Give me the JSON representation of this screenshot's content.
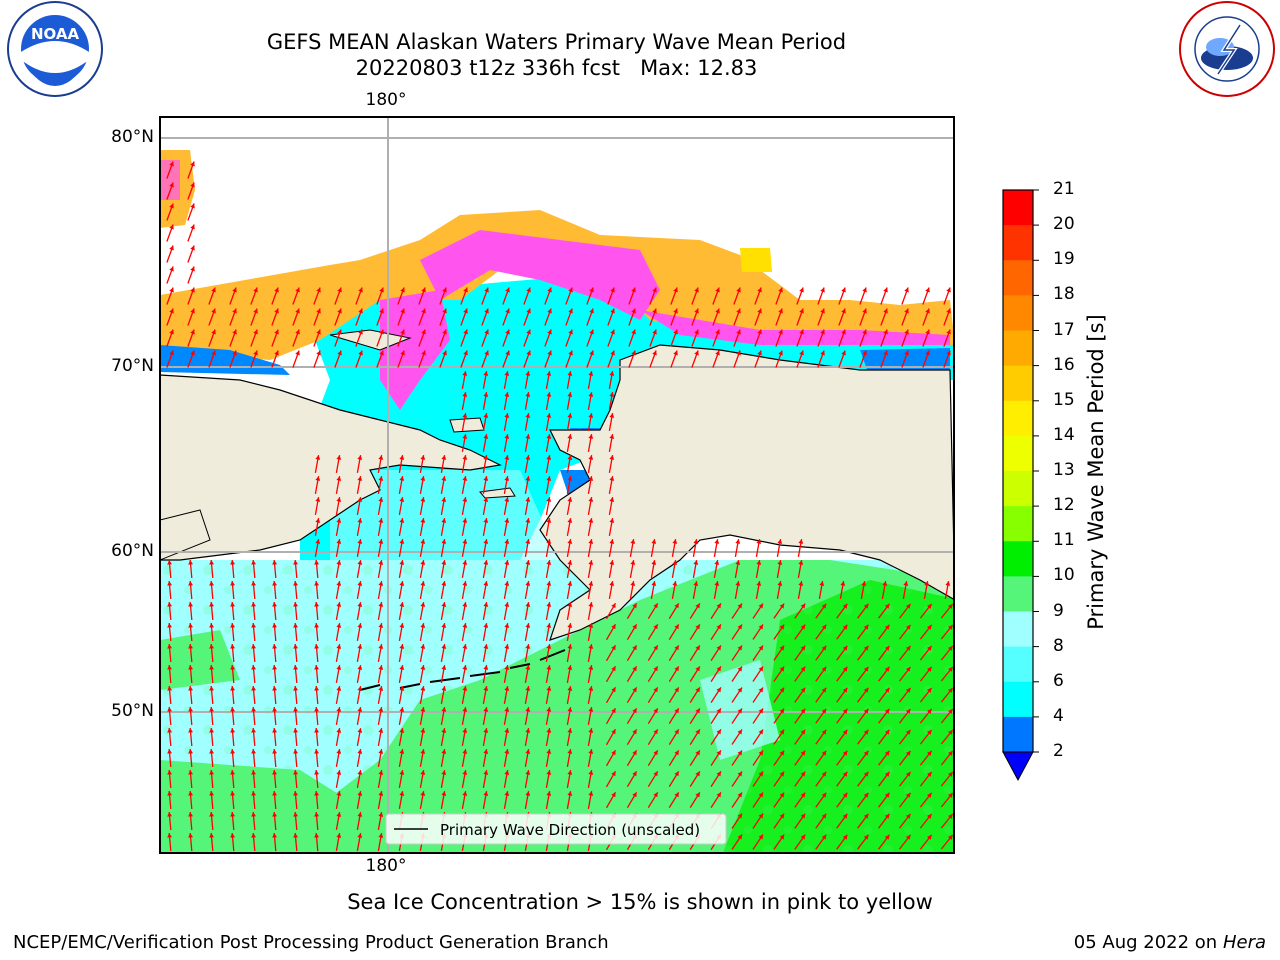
{
  "header": {
    "title_line1": "GEFS MEAN Alaskan Waters Primary Wave Mean Period",
    "title_line2": "20220803 t12z 336h fcst   Max: 12.83"
  },
  "logos": {
    "left": "NOAA",
    "right": "NATIONAL WEATHER SERVICE"
  },
  "map": {
    "lat_labels": [
      "80°N",
      "70°N",
      "60°N",
      "50°N"
    ],
    "lon_label_top": "180°",
    "lon_label_bottom": "180°",
    "legend_label": "Primary Wave Direction (unscaled)",
    "colors": {
      "land": "#efecdc",
      "ocean_shallow": "#a0ffff",
      "ocean_mid": "#00ffff",
      "ocean_green": "#55f57a",
      "ocean_green_dark": "#00ee00",
      "ocean_blue": "#0088ff",
      "ice_pink": "#ff55ee",
      "ice_orange": "#ffbb33",
      "ice_yellow": "#ffe000",
      "arrow": "#ff0000",
      "grid": "#b0b0b0"
    }
  },
  "colorbar": {
    "label": "Primary Wave Mean Period [s]",
    "ticks": [
      "21",
      "20",
      "19",
      "18",
      "17",
      "16",
      "15",
      "14",
      "13",
      "12",
      "11",
      "10",
      "9",
      "8",
      "6",
      "4",
      "2"
    ],
    "colors": [
      "#ff0000",
      "#ff3300",
      "#ff6600",
      "#ff8800",
      "#ffaa00",
      "#ffcc00",
      "#ffee00",
      "#eeff00",
      "#ccff00",
      "#88ff00",
      "#00ee00",
      "#55f57a",
      "#a0ffff",
      "#55ffff",
      "#00ffff",
      "#0077ff"
    ],
    "extend_color": "#0000ff"
  },
  "note": "Sea Ice Concentration > 15% is shown in pink to yellow",
  "footer": {
    "left": "NCEP/EMC/Verification Post Processing Product Generation Branch",
    "date": "05 Aug 2022 on",
    "machine": "Hera"
  }
}
